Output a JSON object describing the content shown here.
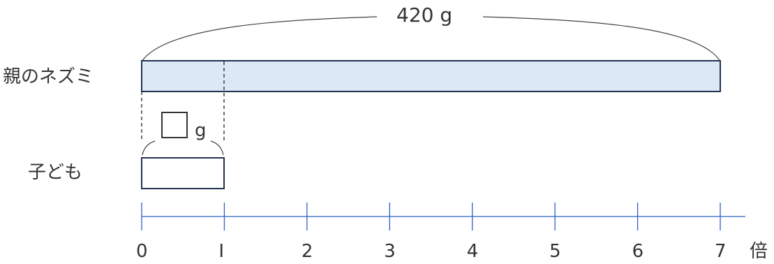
{
  "diagram": {
    "total_label": "420 g",
    "parent_label": "親のネズミ",
    "child_label": "子ども",
    "unknown_unit": "g",
    "axis_unit": "倍",
    "axis_ticks": [
      "0",
      "I",
      "2",
      "3",
      "4",
      "5",
      "6",
      "7"
    ],
    "parent_multiple": 7,
    "child_multiple": 1
  },
  "colors": {
    "bar_stroke": "#1f3350",
    "parent_fill": "#dce8f5",
    "axis": "#2f5fc4",
    "text": "#333333"
  }
}
